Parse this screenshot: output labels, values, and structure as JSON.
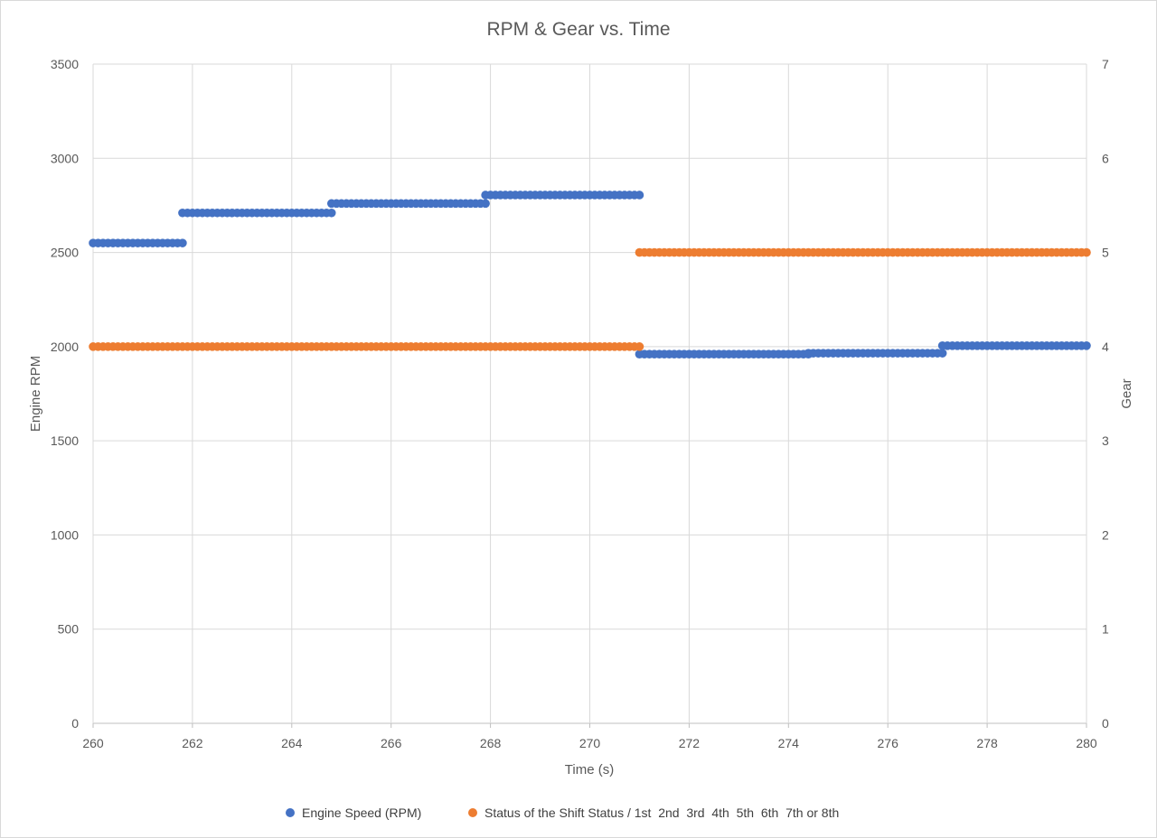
{
  "chart_data": {
    "type": "scatter",
    "title": "RPM & Gear vs. Time",
    "xlabel": "Time (s)",
    "ylabel": "Engine RPM",
    "y2label": "Gear",
    "xlim": [
      260,
      280
    ],
    "ylim": [
      0,
      3500
    ],
    "y2lim": [
      0,
      7
    ],
    "x_ticks": [
      260,
      262,
      264,
      266,
      268,
      270,
      272,
      274,
      276,
      278,
      280
    ],
    "y_ticks": [
      0,
      500,
      1000,
      1500,
      2000,
      2500,
      3000,
      3500
    ],
    "y2_ticks": [
      0,
      1,
      2,
      3,
      4,
      5,
      6,
      7
    ],
    "grid": true,
    "legend_position": "bottom",
    "series": [
      {
        "name": "Engine Speed (RPM)",
        "axis": "left",
        "color": "#4472C4",
        "segments": [
          {
            "x_start": 260.0,
            "x_end": 261.8,
            "y": 2550
          },
          {
            "x_start": 261.8,
            "x_end": 264.8,
            "y": 2710
          },
          {
            "x_start": 264.8,
            "x_end": 267.9,
            "y": 2760
          },
          {
            "x_start": 267.9,
            "x_end": 271.0,
            "y": 2805
          },
          {
            "x_start": 271.0,
            "x_end": 274.4,
            "y": 1960
          },
          {
            "x_start": 274.4,
            "x_end": 277.1,
            "y": 1965
          },
          {
            "x_start": 277.1,
            "x_end": 280.0,
            "y": 2005
          }
        ]
      },
      {
        "name": "Status of the Shift Status / 1st  2nd  3rd  4th  5th  6th  7th or 8th",
        "axis": "right",
        "color": "#ED7D31",
        "segments": [
          {
            "x_start": 260.0,
            "x_end": 271.0,
            "y": 4
          },
          {
            "x_start": 271.0,
            "x_end": 280.0,
            "y": 5
          }
        ]
      }
    ]
  }
}
